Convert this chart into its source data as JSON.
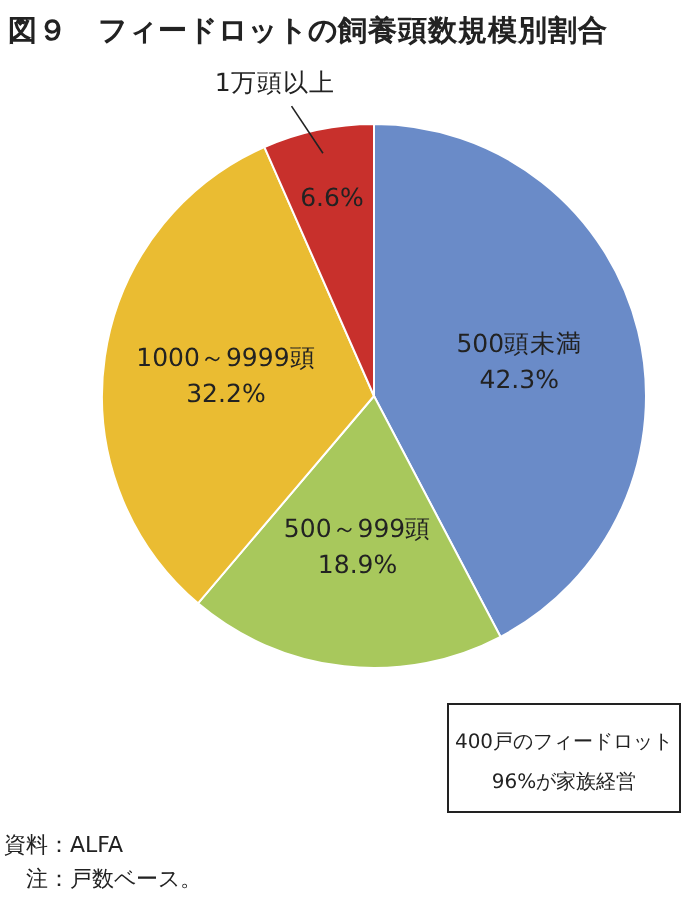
{
  "chart_data": {
    "type": "pie",
    "title": "図９　フィードロットの飼養頭数規模別割合",
    "categories": [
      "500頭未満",
      "500～999頭",
      "1000～9999頭",
      "1万頭以上"
    ],
    "values": [
      42.3,
      18.9,
      32.2,
      6.6
    ],
    "value_labels": [
      "42.3%",
      "18.9%",
      "32.2%",
      "6.6%"
    ],
    "colors": [
      "#6a8bc8",
      "#a8c85c",
      "#eabc32",
      "#c8302c"
    ],
    "annotations": [
      "400戸のフィードロット\n96%が家族経営",
      "資料：ALFA",
      "　注：戸数ベース。"
    ]
  }
}
